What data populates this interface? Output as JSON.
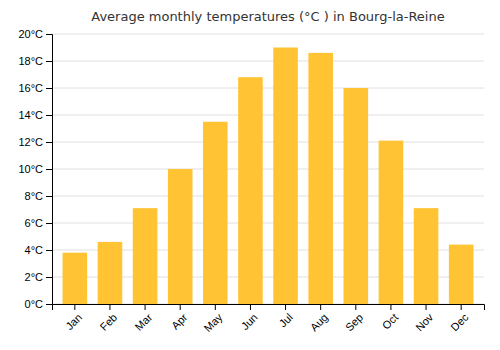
{
  "chart_data": {
    "type": "bar",
    "title": "Average monthly temperatures (°C ) in Bourg-la-Reine",
    "categories": [
      "Jan",
      "Feb",
      "Mar",
      "Apr",
      "May",
      "Jun",
      "Jul",
      "Aug",
      "Sep",
      "Oct",
      "Nov",
      "Dec"
    ],
    "values": [
      3.8,
      4.6,
      7.1,
      10.0,
      13.5,
      16.8,
      19.0,
      18.6,
      16.0,
      12.1,
      7.1,
      4.4
    ],
    "color": "#FFC333",
    "ylim": [
      0,
      20
    ],
    "yticks": [
      {
        "value": 0,
        "label": "0°C"
      },
      {
        "value": 2,
        "label": "2°C"
      },
      {
        "value": 4,
        "label": "4°C"
      },
      {
        "value": 6,
        "label": "6°C"
      },
      {
        "value": 8,
        "label": "8°C"
      },
      {
        "value": 10,
        "label": "10°C"
      },
      {
        "value": 12,
        "label": "12°C"
      },
      {
        "value": 14,
        "label": "14°C"
      },
      {
        "value": 16,
        "label": "16°C"
      },
      {
        "value": 18,
        "label": "18°C"
      },
      {
        "value": 20,
        "label": "20°C"
      }
    ],
    "grid": true
  }
}
